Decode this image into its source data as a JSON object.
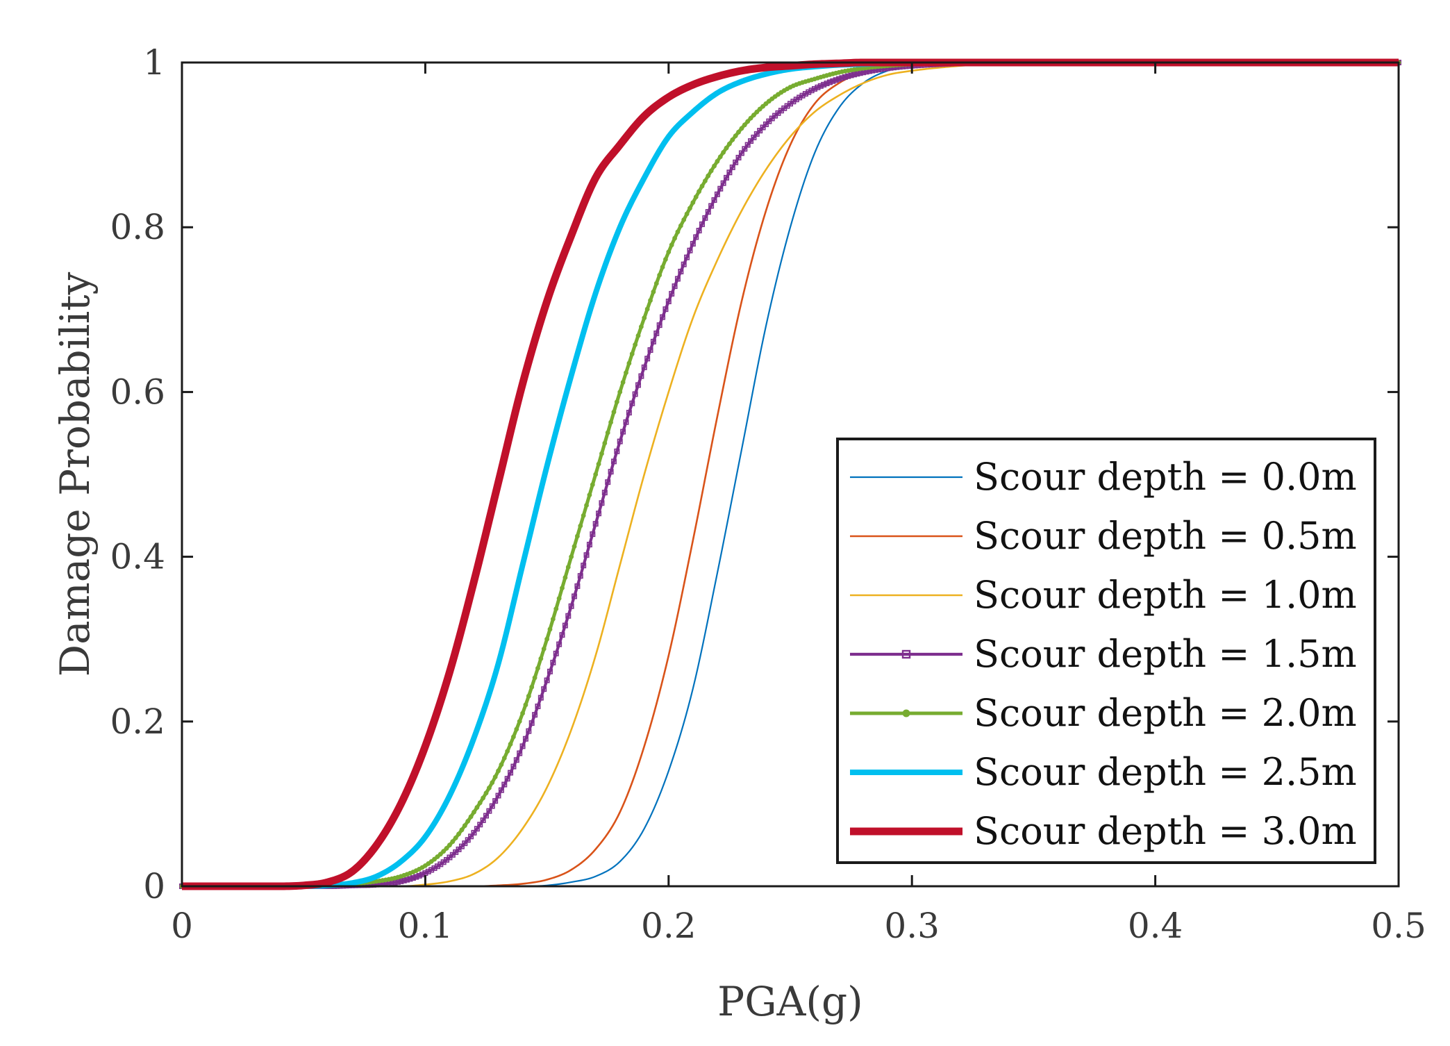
{
  "chart_data": {
    "type": "line",
    "title": "",
    "xlabel": "PGA(g)",
    "ylabel": "Damage Probability",
    "xlim": [
      0,
      0.5
    ],
    "ylim": [
      0,
      1
    ],
    "xticks": [
      0,
      0.1,
      0.2,
      0.3,
      0.4,
      0.5
    ],
    "xtick_labels": [
      "0",
      "0.1",
      "0.2",
      "0.3",
      "0.4",
      "0.5"
    ],
    "yticks": [
      0,
      0.2,
      0.4,
      0.6,
      0.8,
      1
    ],
    "ytick_labels": [
      "0",
      "0.2",
      "0.4",
      "0.6",
      "0.8",
      "1"
    ],
    "grid": false,
    "legend_position": "bottom-right",
    "x": [
      0,
      0.02,
      0.04,
      0.05,
      0.06,
      0.07,
      0.08,
      0.09,
      0.1,
      0.11,
      0.12,
      0.13,
      0.14,
      0.15,
      0.16,
      0.17,
      0.18,
      0.19,
      0.2,
      0.21,
      0.22,
      0.23,
      0.24,
      0.25,
      0.26,
      0.27,
      0.28,
      0.29,
      0.3,
      0.32,
      0.34,
      0.36,
      0.4,
      0.45,
      0.5
    ],
    "series": [
      {
        "name": "Scour depth = 0.0m",
        "color": "#0072BD",
        "marker": "none",
        "values": [
          0,
          0,
          0,
          0,
          0,
          0,
          0,
          0,
          0,
          0,
          0,
          0,
          0,
          0.001,
          0.005,
          0.012,
          0.03,
          0.07,
          0.14,
          0.24,
          0.38,
          0.53,
          0.68,
          0.8,
          0.89,
          0.945,
          0.975,
          0.99,
          0.996,
          0.999,
          1,
          1,
          1,
          1,
          1
        ]
      },
      {
        "name": "Scour depth = 0.5m",
        "color": "#D95319",
        "marker": "none",
        "values": [
          0,
          0,
          0,
          0,
          0,
          0,
          0,
          0,
          0,
          0,
          0,
          0.001,
          0.003,
          0.008,
          0.02,
          0.045,
          0.09,
          0.17,
          0.28,
          0.42,
          0.57,
          0.71,
          0.82,
          0.9,
          0.95,
          0.975,
          0.988,
          0.995,
          0.998,
          1,
          1,
          1,
          1,
          1,
          1
        ]
      },
      {
        "name": "Scour depth = 1.0m",
        "color": "#EDB120",
        "marker": "none",
        "values": [
          0,
          0,
          0,
          0,
          0,
          0,
          0,
          0,
          0.002,
          0.006,
          0.015,
          0.035,
          0.07,
          0.12,
          0.19,
          0.28,
          0.39,
          0.5,
          0.6,
          0.69,
          0.76,
          0.82,
          0.87,
          0.91,
          0.94,
          0.96,
          0.975,
          0.985,
          0.99,
          0.996,
          0.999,
          1,
          1,
          1,
          1
        ]
      },
      {
        "name": "Scour depth = 1.5m",
        "color": "#7E2F8E",
        "marker": "square",
        "values": [
          0,
          0,
          0,
          0,
          0,
          0.001,
          0.002,
          0.006,
          0.016,
          0.035,
          0.065,
          0.11,
          0.17,
          0.25,
          0.34,
          0.44,
          0.54,
          0.63,
          0.71,
          0.78,
          0.84,
          0.89,
          0.925,
          0.95,
          0.968,
          0.98,
          0.988,
          0.993,
          0.996,
          0.999,
          1,
          1,
          1,
          1,
          1
        ]
      },
      {
        "name": "Scour depth = 2.0m",
        "color": "#77AC30",
        "marker": "circle",
        "values": [
          0,
          0,
          0,
          0,
          0.001,
          0.003,
          0.006,
          0.012,
          0.025,
          0.05,
          0.09,
          0.14,
          0.21,
          0.3,
          0.4,
          0.5,
          0.6,
          0.69,
          0.77,
          0.83,
          0.88,
          0.92,
          0.95,
          0.97,
          0.98,
          0.988,
          0.993,
          0.996,
          0.998,
          1,
          1,
          1,
          1,
          1,
          1
        ]
      },
      {
        "name": "Scour depth = 2.5m",
        "color": "#00BFEF",
        "marker": "none",
        "values": [
          0,
          0,
          0,
          0,
          0.001,
          0.004,
          0.012,
          0.03,
          0.06,
          0.11,
          0.18,
          0.27,
          0.39,
          0.51,
          0.62,
          0.72,
          0.8,
          0.86,
          0.91,
          0.94,
          0.963,
          0.977,
          0.986,
          0.992,
          0.995,
          0.997,
          0.998,
          0.999,
          1,
          1,
          1,
          1,
          1,
          1,
          1
        ]
      },
      {
        "name": "Scour depth = 3.0m",
        "color": "#C0102A",
        "marker": "none",
        "values": [
          0,
          0,
          0,
          0.001,
          0.005,
          0.018,
          0.05,
          0.1,
          0.17,
          0.26,
          0.37,
          0.49,
          0.61,
          0.71,
          0.79,
          0.86,
          0.9,
          0.935,
          0.958,
          0.973,
          0.983,
          0.99,
          0.994,
          0.996,
          0.998,
          0.999,
          1,
          1,
          1,
          1,
          1,
          1,
          1,
          1,
          1
        ]
      }
    ]
  }
}
